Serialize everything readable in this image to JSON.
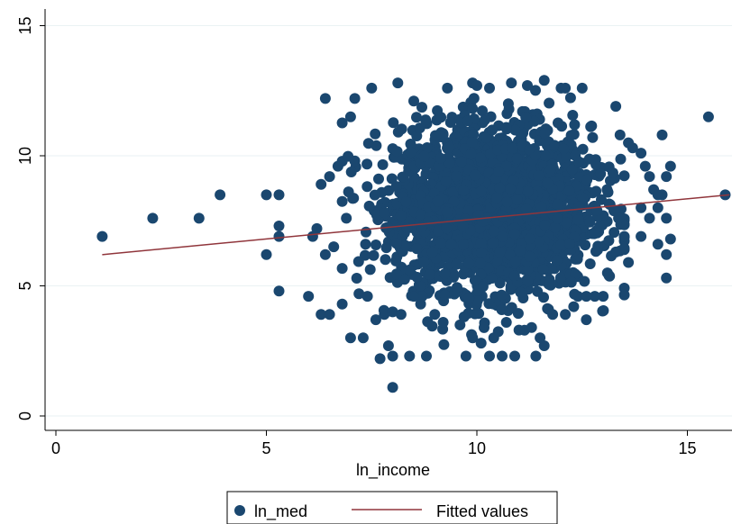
{
  "chart_data": {
    "type": "scatter",
    "title": "",
    "xlabel": "ln_income",
    "ylabel": "",
    "xlim": [
      -0.5,
      16
    ],
    "ylim": [
      -0.5,
      15.5
    ],
    "xticks": [
      0,
      5,
      10,
      15
    ],
    "yticks": [
      0,
      5,
      10,
      15
    ],
    "xtick_labels": [
      "0",
      "5",
      "10",
      "15"
    ],
    "ytick_labels": [
      "0",
      "5",
      "10",
      "15"
    ],
    "grid": "horizontal",
    "legend": {
      "placement": "bottom-center"
    },
    "series": [
      {
        "name": "ln_med",
        "type": "scatter",
        "color": "#1a476f",
        "cloud": {
          "x_center": 10.4,
          "x_sd": 1.15,
          "y_center": 8.0,
          "y_sd": 1.55,
          "x_range": [
            6.8,
            13.5
          ],
          "y_range": [
            2.3,
            12.8
          ]
        },
        "points": [
          [
            1.1,
            6.9
          ],
          [
            2.3,
            7.6
          ],
          [
            3.4,
            7.6
          ],
          [
            3.9,
            8.5
          ],
          [
            5.0,
            8.5
          ],
          [
            5.3,
            8.5
          ],
          [
            5.0,
            6.2
          ],
          [
            5.3,
            7.3
          ],
          [
            5.3,
            6.9
          ],
          [
            5.3,
            4.8
          ],
          [
            6.2,
            7.2
          ],
          [
            6.1,
            6.9
          ],
          [
            6.0,
            4.6
          ],
          [
            6.3,
            3.9
          ],
          [
            6.5,
            3.9
          ],
          [
            6.3,
            8.9
          ],
          [
            6.5,
            9.2
          ],
          [
            6.7,
            9.6
          ],
          [
            6.4,
            6.2
          ],
          [
            6.6,
            6.5
          ],
          [
            6.8,
            4.3
          ],
          [
            7.0,
            3.0
          ],
          [
            7.3,
            3.0
          ],
          [
            7.2,
            4.7
          ],
          [
            6.4,
            12.2
          ],
          [
            7.1,
            12.2
          ],
          [
            7.0,
            11.5
          ],
          [
            7.5,
            12.6
          ],
          [
            7.1,
            9.8
          ],
          [
            6.9,
            7.6
          ],
          [
            7.7,
            2.2
          ],
          [
            8.0,
            2.3
          ],
          [
            7.9,
            2.7
          ],
          [
            8.0,
            1.1
          ],
          [
            8.4,
            2.3
          ],
          [
            8.8,
            2.3
          ],
          [
            10.3,
            2.3
          ],
          [
            10.6,
            2.3
          ],
          [
            10.9,
            2.3
          ],
          [
            11.4,
            2.3
          ],
          [
            11.6,
            2.7
          ],
          [
            12.6,
            3.7
          ],
          [
            9.3,
            12.6
          ],
          [
            10.0,
            12.7
          ],
          [
            10.3,
            12.6
          ],
          [
            11.2,
            12.7
          ],
          [
            11.6,
            12.9
          ],
          [
            12.0,
            12.6
          ],
          [
            12.1,
            12.6
          ],
          [
            12.5,
            12.6
          ],
          [
            8.5,
            12.1
          ],
          [
            13.3,
            11.9
          ],
          [
            13.4,
            10.8
          ],
          [
            13.6,
            10.5
          ],
          [
            13.7,
            10.3
          ],
          [
            13.9,
            10.1
          ],
          [
            14.0,
            9.6
          ],
          [
            14.1,
            9.2
          ],
          [
            14.2,
            8.7
          ],
          [
            14.3,
            8.5
          ],
          [
            14.4,
            8.5
          ],
          [
            14.6,
            9.6
          ],
          [
            14.5,
            9.2
          ],
          [
            14.4,
            10.8
          ],
          [
            13.9,
            8.0
          ],
          [
            14.3,
            8.0
          ],
          [
            14.1,
            7.6
          ],
          [
            14.5,
            7.6
          ],
          [
            14.6,
            6.8
          ],
          [
            14.3,
            6.6
          ],
          [
            14.5,
            6.2
          ],
          [
            14.5,
            5.3
          ],
          [
            13.9,
            6.9
          ],
          [
            13.5,
            6.9
          ],
          [
            13.6,
            5.9
          ],
          [
            13.3,
            6.3
          ],
          [
            13.1,
            5.5
          ],
          [
            13.0,
            4.6
          ],
          [
            12.8,
            4.6
          ],
          [
            12.4,
            4.6
          ],
          [
            12.1,
            3.9
          ],
          [
            11.8,
            3.9
          ],
          [
            8.7,
            4.6
          ],
          [
            8.5,
            4.6
          ],
          [
            7.8,
            3.9
          ],
          [
            7.6,
            3.7
          ],
          [
            7.4,
            4.6
          ],
          [
            8.0,
            4.0
          ],
          [
            8.2,
            3.9
          ],
          [
            9.0,
            3.9
          ],
          [
            9.2,
            3.6
          ],
          [
            9.6,
            3.5
          ],
          [
            9.9,
            3.0
          ],
          [
            10.1,
            2.8
          ],
          [
            10.4,
            3.0
          ],
          [
            10.7,
            3.6
          ],
          [
            11.0,
            3.3
          ],
          [
            11.3,
            3.4
          ],
          [
            11.5,
            3.0
          ],
          [
            11.7,
            4.1
          ],
          [
            12.3,
            4.2
          ],
          [
            12.6,
            4.6
          ],
          [
            15.5,
            11.5
          ],
          [
            15.9,
            8.5
          ]
        ]
      },
      {
        "name": "Fitted values",
        "type": "line",
        "color": "#90353b",
        "x": [
          1.1,
          16.0
        ],
        "y": [
          6.2,
          8.5
        ]
      }
    ]
  }
}
